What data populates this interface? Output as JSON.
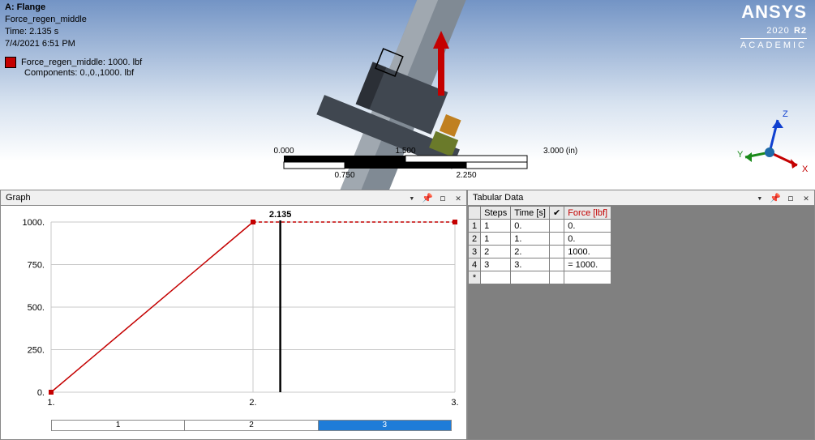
{
  "brand": {
    "name": "ANSYS",
    "year": "2020",
    "release": "R2",
    "edition": "ACADEMIC"
  },
  "info": {
    "title": "A: Flange",
    "load": "Force_regen_middle",
    "time": "Time: 2.135 s",
    "date": "7/4/2021 6:51 PM",
    "legend1": "Force_regen_middle: 1000. lbf",
    "legend2": "Components: 0.,0.,1000. lbf"
  },
  "ruler": {
    "top_ticks": [
      "0.000",
      "1.500",
      "3.000 (in)"
    ],
    "bot_ticks": [
      "0.750",
      "2.250"
    ]
  },
  "triad": {
    "x": "X",
    "y": "Y",
    "z": "Z",
    "x_color": "#c40000",
    "y_color": "#1a8a1a",
    "z_color": "#1040d0"
  },
  "model_colors": {
    "shaft": "#808a94",
    "shaft_light": "#a0a8b0",
    "hub": "#404750",
    "small": "#6a7a2a",
    "tab": "#c08020",
    "dark": "#2b2f36",
    "arrow": "#c40000"
  },
  "graphPanel": {
    "title": "Graph"
  },
  "tabularPanel": {
    "title": "Tabular Data"
  },
  "graph": {
    "cursor_label": "2.135",
    "cursor_x": 2.135,
    "xmin": 1,
    "xmax": 3,
    "ymin": 0,
    "ymax": 1000,
    "yticks": [
      0,
      250,
      500,
      750,
      1000
    ],
    "xticks": [
      1,
      2,
      3
    ],
    "line_color": "#c40000",
    "grid_color": "#c8c8c8",
    "bg": "#ffffff",
    "series_xy": [
      [
        1,
        0
      ],
      [
        2,
        1000
      ],
      [
        3,
        1000
      ]
    ],
    "dashed_after": 2
  },
  "stepbar": {
    "segments": [
      "1",
      "2",
      "3"
    ],
    "selected_index": 2
  },
  "table": {
    "columns": {
      "steps": "Steps",
      "time": "Time [s]",
      "check": "✔",
      "force": "Force [lbf]"
    },
    "rows": [
      {
        "n": "1",
        "steps": "1",
        "time": "0.",
        "force": "0."
      },
      {
        "n": "2",
        "steps": "1",
        "time": "1.",
        "force": "0."
      },
      {
        "n": "3",
        "steps": "2",
        "time": "2.",
        "force": "1000."
      },
      {
        "n": "4",
        "steps": "3",
        "time": "3.",
        "force": "= 1000."
      }
    ],
    "blank": "*"
  },
  "icons": {
    "dropdown": "▾",
    "pin": "📌",
    "popout": "◻",
    "close": "✕"
  }
}
